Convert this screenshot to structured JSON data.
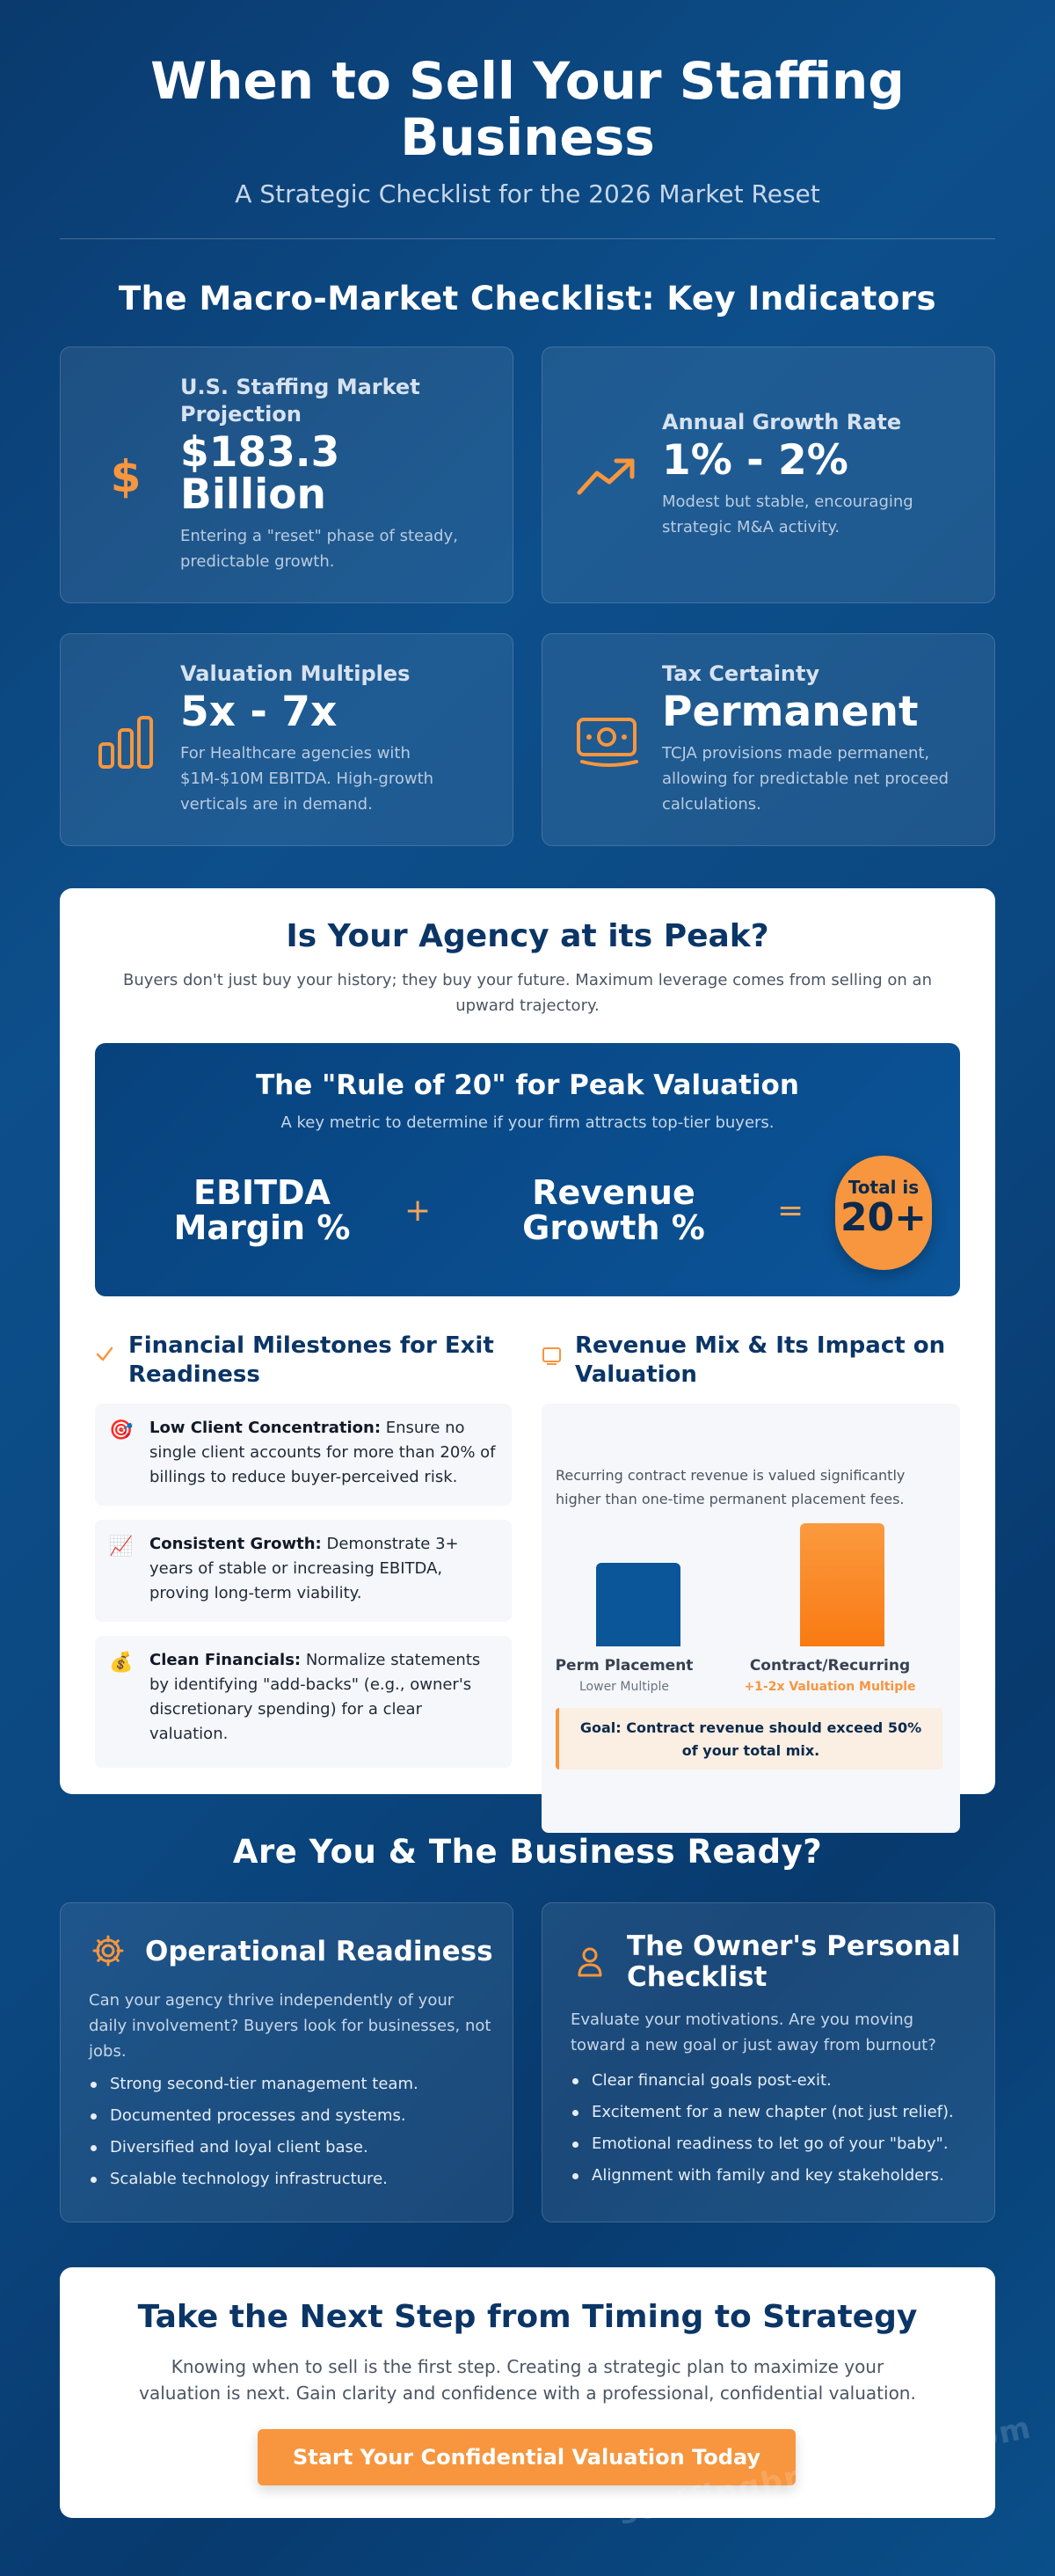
{
  "header": {
    "title": "When to Sell Your Staffing Business",
    "subtitle": "A Strategic Checklist for the 2026 Market Reset"
  },
  "macro": {
    "section_title": "The Macro-Market Checklist: Key Indicators",
    "cards": [
      {
        "icon": "dollar-icon",
        "label": "U.S. Staffing Market Projection",
        "value": "$183.3 Billion",
        "desc": "Entering a \"reset\" phase of steady, predictable growth."
      },
      {
        "icon": "trend-up-icon",
        "label": "Annual Growth Rate",
        "value": "1% - 2%",
        "desc": "Modest but stable, encouraging strategic M&A activity."
      },
      {
        "icon": "bar-chart-icon",
        "label": "Valuation Multiples",
        "value": "5x - 7x",
        "desc": "For Healthcare agencies with $1M-$10M EBITDA. High-growth verticals are in demand."
      },
      {
        "icon": "money-bill-icon",
        "label": "Tax Certainty",
        "value": "Permanent",
        "desc": "TCJA provisions made permanent, allowing for predictable net proceed calculations."
      }
    ]
  },
  "peak": {
    "title": "Is Your Agency at its Peak?",
    "subtitle": "Buyers don't just buy your history; they buy your future. Maximum leverage comes from selling on an upward trajectory.",
    "rule": {
      "title": "The \"Rule of 20\" for Peak Valuation",
      "subtitle": "A key metric to determine if your firm attracts top-tier buyers.",
      "term1": "EBITDA Margin %",
      "plus": "+",
      "term2": "Revenue Growth %",
      "equals": "=",
      "total_label": "Total is",
      "total_value": "20+"
    },
    "milestones": {
      "title": "Financial Milestones for Exit Readiness",
      "items": [
        {
          "icon": "target-icon",
          "emoji": "🎯",
          "bold": "Low Client Concentration:",
          "text": " Ensure no single client accounts for more than 20% of billings to reduce buyer-perceived risk."
        },
        {
          "icon": "chart-growth-icon",
          "emoji": "📈",
          "bold": "Consistent Growth:",
          "text": " Demonstrate 3+ years of stable or increasing EBITDA, proving long-term viability."
        },
        {
          "icon": "money-bag-icon",
          "emoji": "💰",
          "bold": "Clean Financials:",
          "text": " Normalize statements by identifying \"add-backs\" (e.g., owner's discretionary spending) for a clear valuation."
        }
      ]
    },
    "mix": {
      "title": "Revenue Mix & Its Impact on Valuation",
      "desc": "Recurring contract revenue is valued significantly higher than one-time permanent placement fees.",
      "bars": [
        {
          "label": "Perm Placement",
          "sub": "Lower Multiple",
          "level": 0.68,
          "color": "#0b5599",
          "sub_color": "#6b7280"
        },
        {
          "label": "Contract/Recurring",
          "sub": "+1-2x Valuation Multiple",
          "level": 1.0,
          "color": "#f7963e",
          "sub_color": "#f7963e"
        }
      ],
      "goal": "Goal: Contract revenue should exceed 50% of your total mix."
    }
  },
  "ready": {
    "section_title": "Are You & The Business Ready?",
    "cards": [
      {
        "icon": "gear-icon",
        "title": "Operational Readiness",
        "desc": "Can your agency thrive independently of your daily involvement? Buyers look for businesses, not jobs.",
        "items": [
          "Strong second-tier management team.",
          "Documented processes and systems.",
          "Diversified and loyal client base.",
          "Scalable technology infrastructure."
        ]
      },
      {
        "icon": "person-icon",
        "title": "The Owner's Personal Checklist",
        "desc": "Evaluate your motivations. Are you moving toward a new goal or just away from burnout?",
        "items": [
          "Clear financial goals post-exit.",
          "Excitement for a new chapter (not just relief).",
          "Emotional readiness to let go of your \"baby\".",
          "Alignment with family and key stakeholders."
        ]
      }
    ]
  },
  "cta": {
    "title": "Take the Next Step from Timing to Strategy",
    "text": "Knowing when to sell is the first step. Creating a strategic plan to maximize your valuation is next. Gain clarity and confidence with a professional, confidential valuation.",
    "button": "Start Your Confidential Valuation Today"
  },
  "watermark": "staffingbrokerage.com",
  "colors": {
    "accent": "#f7963e",
    "navy": "#0b3566",
    "blue": "#0b5599"
  }
}
